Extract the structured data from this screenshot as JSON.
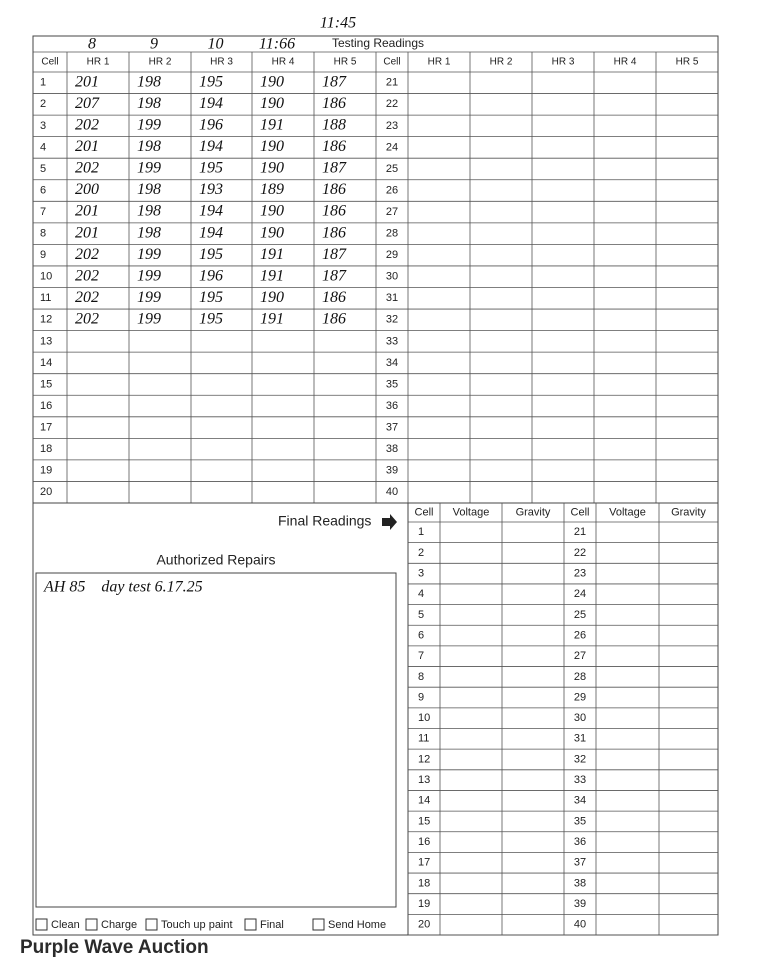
{
  "header": {
    "handwritten_marks": [
      "8",
      "9",
      "10",
      "11:66"
    ],
    "handwritten_time": "11:45",
    "title": "Testing Readings"
  },
  "testing_table": {
    "columns": [
      "Cell",
      "HR 1",
      "HR 2",
      "HR 3",
      "HR 4",
      "HR 5",
      "Cell",
      "HR 1",
      "HR 2",
      "HR 3",
      "HR 4",
      "HR 5"
    ],
    "rows": [
      {
        "left_cell": 1,
        "left_readings": [
          "201",
          "198",
          "195",
          "190",
          "187"
        ],
        "right_cell": 21
      },
      {
        "left_cell": 2,
        "left_readings": [
          "207",
          "198",
          "194",
          "190",
          "186"
        ],
        "right_cell": 22
      },
      {
        "left_cell": 3,
        "left_readings": [
          "202",
          "199",
          "196",
          "191",
          "188"
        ],
        "right_cell": 23
      },
      {
        "left_cell": 4,
        "left_readings": [
          "201",
          "198",
          "194",
          "190",
          "186"
        ],
        "right_cell": 24
      },
      {
        "left_cell": 5,
        "left_readings": [
          "202",
          "199",
          "195",
          "190",
          "187"
        ],
        "right_cell": 25
      },
      {
        "left_cell": 6,
        "left_readings": [
          "200",
          "198",
          "193",
          "189",
          "186"
        ],
        "right_cell": 26
      },
      {
        "left_cell": 7,
        "left_readings": [
          "201",
          "198",
          "194",
          "190",
          "186"
        ],
        "right_cell": 27
      },
      {
        "left_cell": 8,
        "left_readings": [
          "201",
          "198",
          "194",
          "190",
          "186"
        ],
        "right_cell": 28
      },
      {
        "left_cell": 9,
        "left_readings": [
          "202",
          "199",
          "195",
          "191",
          "187"
        ],
        "right_cell": 29
      },
      {
        "left_cell": 10,
        "left_readings": [
          "202",
          "199",
          "196",
          "191",
          "187"
        ],
        "right_cell": 30
      },
      {
        "left_cell": 11,
        "left_readings": [
          "202",
          "199",
          "195",
          "190",
          "186"
        ],
        "right_cell": 31
      },
      {
        "left_cell": 12,
        "left_readings": [
          "202",
          "199",
          "195",
          "191",
          "186"
        ],
        "right_cell": 32
      },
      {
        "left_cell": 13,
        "right_cell": 33
      },
      {
        "left_cell": 14,
        "right_cell": 34
      },
      {
        "left_cell": 15,
        "right_cell": 35
      },
      {
        "left_cell": 16,
        "right_cell": 36
      },
      {
        "left_cell": 17,
        "right_cell": 37
      },
      {
        "left_cell": 18,
        "right_cell": 38
      },
      {
        "left_cell": 19,
        "right_cell": 39
      },
      {
        "left_cell": 20,
        "right_cell": 40
      }
    ]
  },
  "final_readings": {
    "label": "Final Readings",
    "columns": [
      "Cell",
      "Voltage",
      "Gravity",
      "Cell",
      "Voltage",
      "Gravity"
    ],
    "left_cells": [
      1,
      2,
      3,
      4,
      5,
      6,
      7,
      8,
      9,
      10,
      11,
      12,
      13,
      14,
      15,
      16,
      17,
      18,
      19,
      20
    ],
    "right_cells": [
      21,
      22,
      23,
      24,
      25,
      26,
      27,
      28,
      29,
      30,
      31,
      32,
      33,
      34,
      35,
      36,
      37,
      38,
      39,
      40
    ]
  },
  "authorized_repairs": {
    "title": "Authorized Repairs",
    "note": "AH 85    day test 6.17.25"
  },
  "checkboxes": [
    "Clean",
    "Charge",
    "Touch up paint",
    "Final",
    "Send Home"
  ],
  "watermark": "Purple Wave Auction"
}
